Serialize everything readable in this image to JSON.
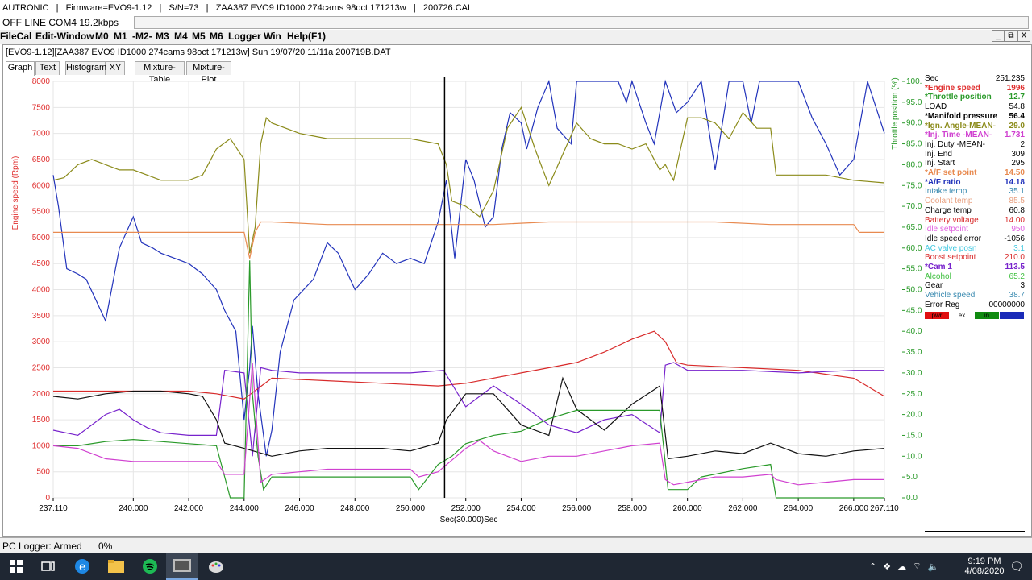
{
  "titlebar": {
    "text": "AUTRONIC   |   Firmware=EVO9-1.12   |   S/N=73   |   ZAA387 EVO9 ID1000 274cams 98oct 171213w   |   200726.CAL"
  },
  "status_line": "OFF LINE COM4 19.2kbps",
  "menu": [
    "FileCal",
    "Edit-Window",
    "M0",
    "M1",
    "-M2-",
    "M3",
    "M4",
    "M5",
    "M6",
    "Logger",
    "Win",
    "Help(F1)"
  ],
  "window_controls": [
    "_",
    "⧉",
    "X"
  ],
  "doc_title": "[EVO9-1.12][ZAA387 EVO9 ID1000 274cams 98oct 171213w] Sun 19/07/20 11/11a  200719B.DAT",
  "tabs": [
    "Graph",
    "Text",
    "Histogram",
    "XY",
    "Mixture-Table",
    "Mixture-Plot"
  ],
  "chart_data": {
    "type": "line",
    "xlabel": "Sec(30.000)Sec",
    "x_ticks": [
      "237.110",
      "240.000",
      "242.000",
      "244.000",
      "246.000",
      "248.000",
      "250.000",
      "252.000",
      "254.000",
      "256.000",
      "258.000",
      "260.000",
      "262.000",
      "264.000",
      "266.000",
      "267.110"
    ],
    "xlim": [
      237.11,
      267.11
    ],
    "left_axis": {
      "label": "Engine speed (Rpm)",
      "color": "#e03030",
      "ticks": [
        "8000",
        "7500",
        "7000",
        "6500",
        "6000",
        "5500",
        "5000",
        "4500",
        "4000",
        "3500",
        "3000",
        "2500",
        "2000",
        "1500",
        "1000",
        "500",
        "0"
      ],
      "range": [
        0,
        8000
      ]
    },
    "right_axis": {
      "label": "Throttle position (%)",
      "color": "#2a9a2a",
      "ticks": [
        "100.0",
        "95.0",
        "90.0",
        "85.0",
        "80.0",
        "75.0",
        "70.0",
        "65.0",
        "60.0",
        "55.0",
        "50.0",
        "45.0",
        "40.0",
        "35.0",
        "30.0",
        "25.0",
        "20.0",
        "15.0",
        "10.0",
        "5.0",
        "0.0"
      ],
      "range": [
        0,
        100
      ]
    },
    "cursor_x": 251.235,
    "grid": true,
    "series": [
      {
        "color": "#2233bb",
        "x": [
          237.11,
          237.3,
          237.6,
          238.0,
          238.3,
          239.0,
          239.5,
          240.0,
          240.3,
          240.7,
          241.0,
          241.5,
          242.0,
          242.5,
          243.0,
          243.3,
          243.7,
          244.0,
          244.2,
          244.3,
          244.5,
          244.8,
          245.0,
          245.3,
          245.8,
          246.5,
          247.0,
          247.4,
          248.0,
          248.5,
          249.0,
          249.5,
          250.0,
          250.5,
          251.0,
          251.3,
          251.6,
          252.0,
          252.3,
          252.7,
          253.0,
          253.3,
          253.6,
          254.0,
          254.2,
          254.6,
          255.0,
          255.3,
          255.8,
          256.0,
          256.5,
          257.0,
          257.5,
          257.8,
          258.0,
          258.5,
          258.8,
          259.2,
          259.6,
          260.0,
          260.5,
          261.0,
          261.5,
          262.0,
          262.3,
          262.6,
          263.0,
          263.5,
          264.0,
          264.5,
          265.0,
          265.5,
          266.0,
          266.5,
          267.11
        ],
        "values": [
          6200,
          5600,
          4400,
          4300,
          4200,
          3400,
          4800,
          5400,
          4900,
          4800,
          4700,
          4600,
          4500,
          4300,
          4000,
          3600,
          3200,
          1500,
          2500,
          3300,
          2000,
          800,
          1300,
          2800,
          3800,
          4200,
          4900,
          4700,
          4000,
          4300,
          4700,
          4500,
          4600,
          4500,
          5300,
          6100,
          4600,
          6500,
          6100,
          5200,
          5400,
          6700,
          7400,
          7200,
          6700,
          7500,
          8000,
          7100,
          6800,
          8000,
          8000,
          8000,
          8000,
          7600,
          8000,
          7200,
          6800,
          8000,
          7400,
          7600,
          8000,
          6300,
          8000,
          8000,
          7200,
          8000,
          8000,
          8000,
          8000,
          7300,
          6800,
          6200,
          6500,
          8000,
          7000
        ]
      },
      {
        "color": "#8b8b1a",
        "x": [
          237.11,
          237.5,
          238.0,
          238.5,
          239.0,
          239.5,
          240.0,
          240.5,
          241.0,
          241.5,
          242.0,
          242.5,
          243.0,
          243.5,
          244.0,
          244.2,
          244.4,
          244.6,
          244.8,
          245.0,
          246.0,
          247.0,
          248.0,
          249.0,
          250.0,
          251.0,
          251.3,
          251.5,
          252.0,
          252.5,
          253.0,
          253.5,
          254.0,
          254.5,
          255.0,
          255.5,
          256.0,
          256.5,
          257.0,
          257.5,
          258.0,
          258.5,
          259.0,
          259.2,
          259.5,
          260.0,
          260.5,
          261.0,
          261.5,
          262.0,
          262.5,
          263.0,
          263.2,
          264.0,
          265.0,
          266.0,
          267.11
        ],
        "values": [
          6100,
          6150,
          6400,
          6500,
          6400,
          6300,
          6300,
          6200,
          6100,
          6100,
          6100,
          6200,
          6700,
          6900,
          6500,
          4700,
          5200,
          6800,
          7300,
          7200,
          7000,
          6900,
          6900,
          6900,
          6900,
          6800,
          6400,
          5700,
          5600,
          5400,
          5900,
          7100,
          7500,
          6700,
          6000,
          6600,
          7200,
          6900,
          6800,
          6800,
          6700,
          6800,
          6300,
          6400,
          6100,
          7300,
          7300,
          7200,
          6900,
          7400,
          7100,
          7100,
          6200,
          6200,
          6200,
          6100,
          6050
        ]
      },
      {
        "color": "#e88a50",
        "x": [
          237.11,
          240.0,
          242.0,
          244.0,
          244.2,
          244.4,
          244.6,
          245.0,
          247.0,
          249.0,
          251.0,
          253.0,
          255.0,
          257.0,
          259.0,
          261.0,
          263.0,
          265.0,
          266.0,
          266.2,
          267.11
        ],
        "values": [
          5100,
          5100,
          5100,
          5100,
          4600,
          5100,
          5300,
          5300,
          5250,
          5250,
          5250,
          5250,
          5300,
          5300,
          5300,
          5300,
          5250,
          5250,
          5250,
          5100,
          5100
        ]
      },
      {
        "color": "#d82a2a",
        "x": [
          237.11,
          238.0,
          240.0,
          242.0,
          243.0,
          244.0,
          245.0,
          247.0,
          249.0,
          251.0,
          252.0,
          254.0,
          256.0,
          257.0,
          258.0,
          258.8,
          259.2,
          259.6,
          260.0,
          262.0,
          264.0,
          266.0,
          267.11
        ],
        "values": [
          2050,
          2050,
          2050,
          2050,
          2000,
          1900,
          2300,
          2250,
          2200,
          2150,
          2200,
          2400,
          2600,
          2800,
          3050,
          3200,
          3000,
          2600,
          2550,
          2500,
          2450,
          2300,
          1950
        ]
      },
      {
        "color": "#7722cc",
        "x": [
          237.11,
          238.0,
          239.0,
          239.5,
          240.0,
          240.5,
          241.0,
          242.0,
          243.0,
          243.3,
          244.0,
          244.3,
          244.6,
          245.0,
          246.0,
          248.0,
          250.0,
          251.2,
          252.0,
          253.0,
          254.0,
          255.0,
          256.0,
          257.0,
          258.0,
          259.0,
          259.2,
          259.5,
          260.0,
          262.0,
          264.0,
          266.0,
          267.11
        ],
        "values": [
          1300,
          1200,
          1600,
          1700,
          1500,
          1350,
          1250,
          1200,
          1200,
          2450,
          2400,
          800,
          2500,
          2450,
          2400,
          2400,
          2400,
          2450,
          1750,
          2150,
          1800,
          1400,
          1250,
          1500,
          1600,
          1250,
          2550,
          2600,
          2450,
          2450,
          2400,
          2450,
          2450
        ]
      },
      {
        "color": "#111111",
        "x": [
          237.11,
          238.0,
          239.0,
          240.0,
          241.0,
          242.0,
          242.5,
          243.0,
          243.3,
          244.0,
          245.0,
          246.0,
          247.0,
          248.0,
          249.0,
          250.0,
          251.0,
          251.3,
          252.0,
          253.0,
          254.0,
          255.0,
          255.5,
          256.0,
          257.0,
          258.0,
          259.0,
          259.3,
          260.0,
          261.0,
          262.0,
          263.0,
          264.0,
          265.0,
          266.0,
          267.11
        ],
        "values": [
          1950,
          1900,
          2000,
          2050,
          2050,
          2000,
          1950,
          1500,
          1050,
          950,
          800,
          900,
          950,
          950,
          950,
          900,
          1050,
          1500,
          2000,
          2000,
          1400,
          1200,
          2300,
          1700,
          1300,
          1800,
          2150,
          750,
          800,
          900,
          850,
          1050,
          850,
          800,
          900,
          950
        ]
      },
      {
        "color": "#2a9a2a",
        "x": [
          237.11,
          238.0,
          239.0,
          240.0,
          241.0,
          242.0,
          243.0,
          243.3,
          243.5,
          244.0,
          244.2,
          244.3,
          244.5,
          244.7,
          245.0,
          246.0,
          247.0,
          248.0,
          249.0,
          250.0,
          250.3,
          251.0,
          251.5,
          252.0,
          253.0,
          254.0,
          255.0,
          256.0,
          257.0,
          258.0,
          259.0,
          259.3,
          260.0,
          260.5,
          262.0,
          263.0,
          263.2,
          264.0,
          266.0,
          267.11
        ],
        "values": [
          12.5,
          12.5,
          13.5,
          14.0,
          13.5,
          13.0,
          12.5,
          5,
          0,
          0,
          57,
          25,
          10,
          2,
          5,
          5,
          5,
          5,
          5,
          5,
          2,
          8,
          10,
          13,
          15,
          16,
          19,
          21,
          21,
          21,
          21,
          2,
          2,
          5,
          7,
          8,
          0,
          0,
          0,
          0
        ]
      },
      {
        "color": "#d040d0",
        "x": [
          237.11,
          238.0,
          239.0,
          240.0,
          241.0,
          242.0,
          243.0,
          243.3,
          244.0,
          244.3,
          244.6,
          245.0,
          246.0,
          247.0,
          248.0,
          249.0,
          250.0,
          250.3,
          251.0,
          252.0,
          252.5,
          253.0,
          254.0,
          255.0,
          256.0,
          257.0,
          258.0,
          259.0,
          259.2,
          259.5,
          260.0,
          261.0,
          262.0,
          263.0,
          263.2,
          264.0,
          265.0,
          266.0,
          267.11
        ],
        "values": [
          1000,
          950,
          750,
          700,
          700,
          700,
          700,
          450,
          450,
          2600,
          300,
          450,
          500,
          550,
          550,
          550,
          550,
          400,
          500,
          950,
          1100,
          900,
          700,
          800,
          800,
          900,
          1000,
          1050,
          350,
          250,
          300,
          400,
          400,
          450,
          350,
          250,
          300,
          350,
          350
        ]
      }
    ]
  },
  "side_panel": [
    {
      "label": "Sec",
      "value": "251.235",
      "color": "#000000",
      "bold": false
    },
    {
      "label": "*Engine speed",
      "value": "1996",
      "color": "#e03030",
      "bold": true
    },
    {
      "label": "*Throttle position",
      "value": "12.7",
      "color": "#2a9a2a",
      "bold": true
    },
    {
      "label": "LOAD",
      "value": "54.8",
      "color": "#000000",
      "bold": false
    },
    {
      "label": "*Manifold pressure",
      "value": "56.4",
      "color": "#000000",
      "bold": true
    },
    {
      "label": "*Ign. Angle-MEAN-",
      "value": "29.0",
      "color": "#8b8b1a",
      "bold": true
    },
    {
      "label": "*Inj. Time -MEAN-",
      "value": "1.731",
      "color": "#d040d0",
      "bold": true
    },
    {
      "label": "Inj. Duty -MEAN-",
      "value": "2",
      "color": "#000000",
      "bold": false
    },
    {
      "label": "Inj. End",
      "value": "309",
      "color": "#000000",
      "bold": false
    },
    {
      "label": "Inj. Start",
      "value": "295",
      "color": "#000000",
      "bold": false
    },
    {
      "label": "*A/F set point",
      "value": "14.50",
      "color": "#e88a50",
      "bold": true
    },
    {
      "label": "*A/F ratio",
      "value": "14.18",
      "color": "#2233bb",
      "bold": true
    },
    {
      "label": "Intake temp",
      "value": "35.1",
      "color": "#3a8ab0",
      "bold": false
    },
    {
      "label": "Coolant temp",
      "value": "85.5",
      "color": "#e8a080",
      "bold": false
    },
    {
      "label": "Charge temp",
      "value": "60.8",
      "color": "#000000",
      "bold": false
    },
    {
      "label": "Battery voltage",
      "value": "14.00",
      "color": "#d82a2a",
      "bold": false
    },
    {
      "label": "Idle setpoint",
      "value": "950",
      "color": "#e060e0",
      "bold": false
    },
    {
      "label": "Idle speed error",
      "value": "-1056",
      "color": "#000000",
      "bold": false
    },
    {
      "label": "AC valve posn",
      "value": "3.1",
      "color": "#40c8e0",
      "bold": false
    },
    {
      "label": "Boost setpoint",
      "value": "210.0",
      "color": "#d82a2a",
      "bold": false
    },
    {
      "label": "*Cam 1",
      "value": "113.5",
      "color": "#7722cc",
      "bold": true
    },
    {
      "label": "Alcohol",
      "value": "65.2",
      "color": "#40c040",
      "bold": false
    },
    {
      "label": "Gear",
      "value": "3",
      "color": "#000000",
      "bold": false
    },
    {
      "label": "Vehicle speed",
      "value": "38.7",
      "color": "#3a8ab0",
      "bold": false
    },
    {
      "label": "Error Reg",
      "value": "00000000",
      "color": "#000000",
      "bold": false
    }
  ],
  "indicators": [
    {
      "label": "pwr",
      "color": "#e01010"
    },
    {
      "label": "ex",
      "color": "#ffffff"
    },
    {
      "label": "in",
      "color": "#108a10"
    },
    {
      "label": "",
      "color": "#1a2ab8"
    }
  ],
  "bottom_bar": {
    "left": "PC Logger: Armed",
    "right": "0%"
  },
  "taskbar": {
    "icons": [
      "windows-icon",
      "task-view-icon",
      "edge-icon",
      "file-explorer-icon",
      "spotify-icon",
      "autronic-app-icon",
      "paint-icon"
    ],
    "time": "9:19 PM",
    "date": "4/08/2020"
  }
}
